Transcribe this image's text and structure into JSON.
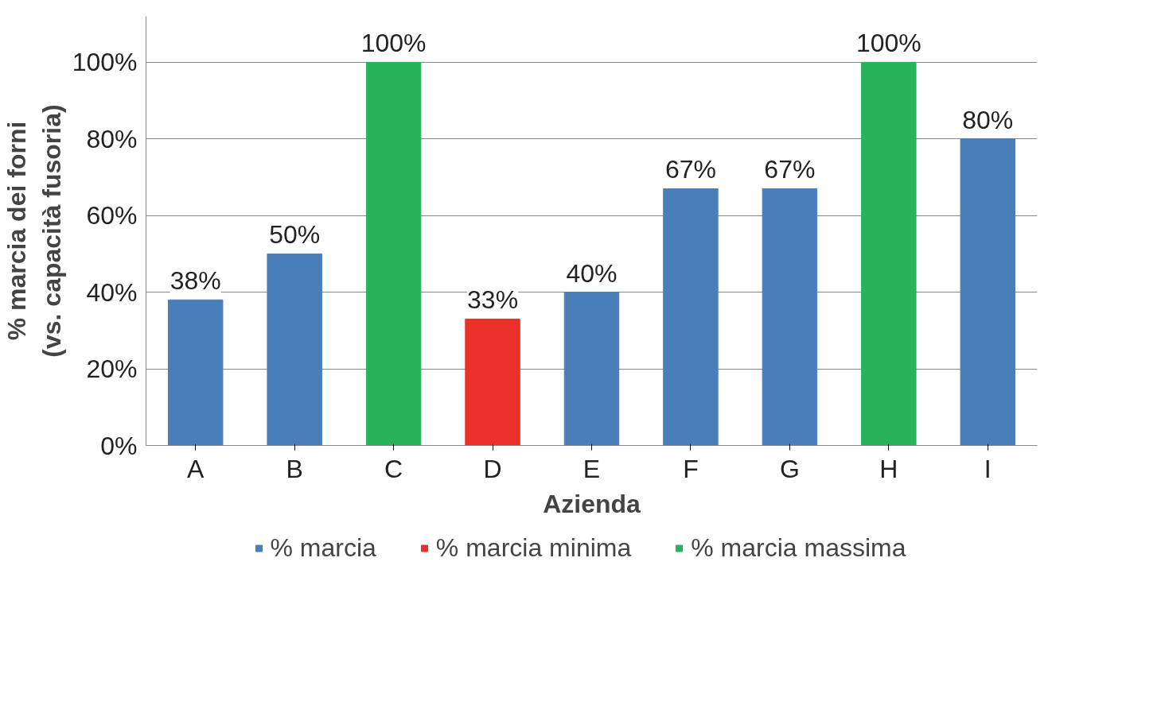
{
  "chart_data": {
    "type": "bar",
    "xlabel": "Azienda",
    "ylabel": "% marcia dei forni\n(vs. capacità fusoria)",
    "categories": [
      "A",
      "B",
      "C",
      "D",
      "E",
      "F",
      "G",
      "H",
      "I"
    ],
    "series": [
      {
        "name": "% marcia",
        "color": "#4a7ebb",
        "values": [
          38,
          50,
          null,
          null,
          40,
          67,
          67,
          null,
          80
        ],
        "value_labels": [
          "38%",
          "50%",
          null,
          null,
          "40%",
          "67%",
          "67%",
          null,
          "80%"
        ]
      },
      {
        "name": "% marcia minima",
        "color": "#e8312a",
        "values": [
          null,
          null,
          null,
          33,
          null,
          null,
          null,
          null,
          null
        ],
        "value_labels": [
          null,
          null,
          null,
          "33%",
          null,
          null,
          null,
          null,
          null
        ]
      },
      {
        "name": "% marcia massima",
        "color": "#27b35a",
        "values": [
          null,
          null,
          100,
          null,
          null,
          null,
          null,
          100,
          null
        ],
        "value_labels": [
          null,
          null,
          "100%",
          null,
          null,
          null,
          null,
          "100%",
          null
        ]
      }
    ],
    "ylim": [
      0,
      112
    ],
    "yticks": [
      {
        "value": 0,
        "label": "0%"
      },
      {
        "value": 20,
        "label": "20%"
      },
      {
        "value": 40,
        "label": "40%"
      },
      {
        "value": 60,
        "label": "60%"
      },
      {
        "value": 80,
        "label": "80%"
      },
      {
        "value": 100,
        "label": "100%"
      }
    ],
    "grid": "y",
    "legend": "bottom"
  }
}
